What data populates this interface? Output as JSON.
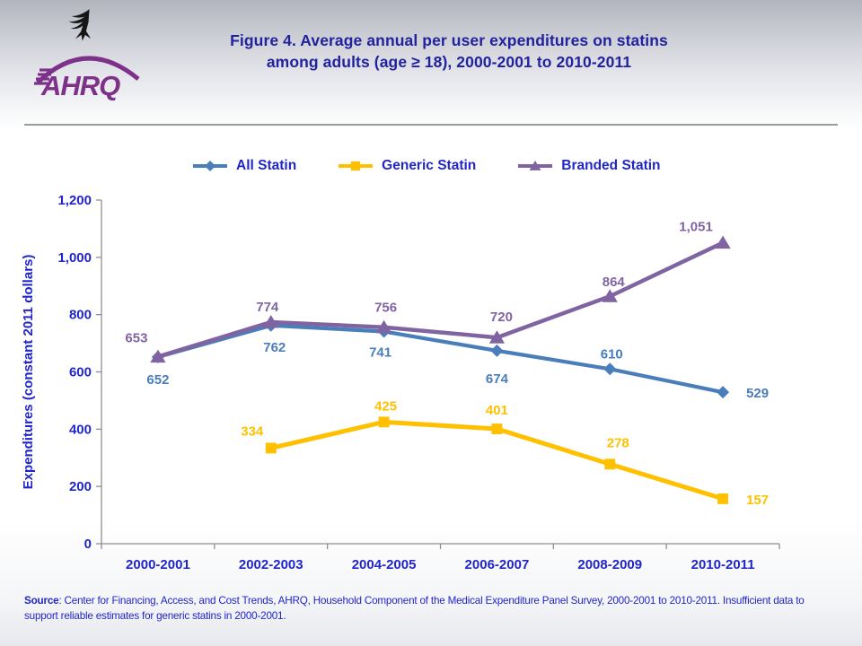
{
  "header": {
    "logo_text": "AHRQ",
    "title_line1": "Figure 4. Average annual per user expenditures on statins",
    "title_line2": "among adults (age ≥ 18), 2000-2001 to 2010-2011"
  },
  "colors": {
    "all_statin": "#4a7ebb",
    "generic_statin": "#ffc000",
    "branded_statin": "#8064a2",
    "chart_text": "#2126c9",
    "title_text": "#22229e",
    "logo_purple": "#7d3189",
    "axis_gray": "#8f8f8f"
  },
  "chart_data": {
    "type": "line",
    "categories": [
      "2000-2001",
      "2002-2003",
      "2004-2005",
      "2006-2007",
      "2008-2009",
      "2010-2011"
    ],
    "series": [
      {
        "name": "All Statin",
        "marker": "diamond",
        "color": "#4a7ebb",
        "values": [
          652,
          762,
          741,
          674,
          610,
          529
        ],
        "labels": [
          "652",
          "762",
          "741",
          "674",
          "610",
          "529"
        ]
      },
      {
        "name": "Generic Statin",
        "marker": "square",
        "color": "#ffc000",
        "values": [
          null,
          334,
          425,
          401,
          278,
          157
        ],
        "labels": [
          null,
          "334",
          "425",
          "401",
          "278",
          "157"
        ]
      },
      {
        "name": "Branded Statin",
        "marker": "triangle",
        "color": "#8064a2",
        "values": [
          653,
          774,
          756,
          720,
          864,
          1051
        ],
        "labels": [
          "653",
          "774",
          "756",
          "720",
          "864",
          "1,051"
        ]
      }
    ],
    "xlabel": "",
    "ylabel": "Expenditures (constant 2011 dollars)",
    "ylim": [
      0,
      1200
    ],
    "ytick_step": 200,
    "ytick_labels": [
      "0",
      "200",
      "400",
      "600",
      "800",
      "1,000",
      "1,200"
    ],
    "legend_position": "top",
    "grid": false
  },
  "footer": {
    "source_label": "Source",
    "source_text": ": Center for Financing, Access, and Cost Trends, AHRQ,  Household Component of the Medical Expenditure Panel Survey,  2000-2001 to 2010-2011. Insufficient data to support reliable estimates for generic statins in 2000-2001."
  }
}
